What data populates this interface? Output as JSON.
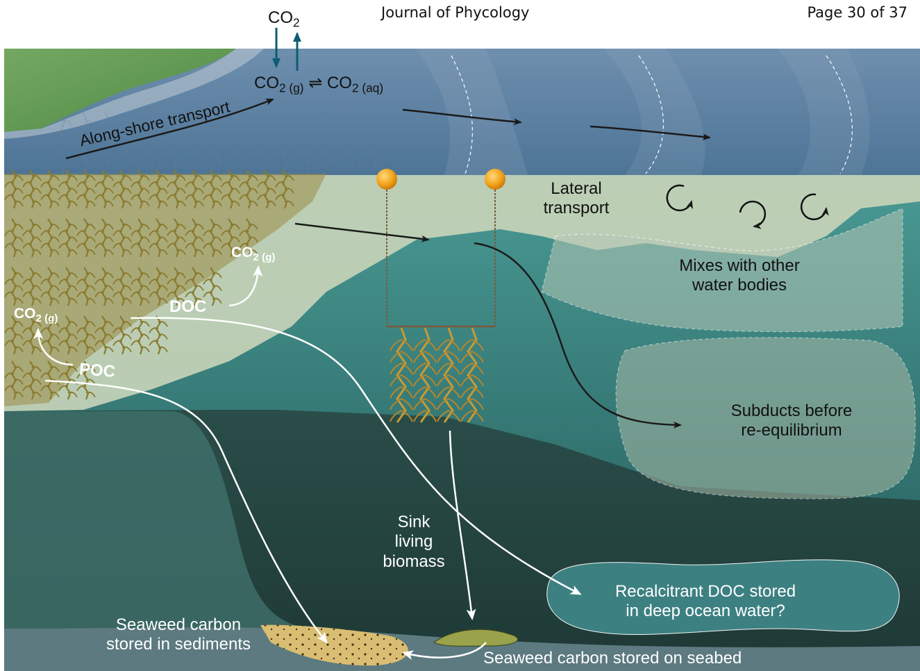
{
  "header": {
    "journal": "Journal of Phycology",
    "page": "Page 30 of 37"
  },
  "labels": {
    "co2_top": "CO",
    "co2_top_sub": "2",
    "equilibrium_left": "CO",
    "equilibrium_left_sub": "2 (g)",
    "equilibrium_symbol": "⇌",
    "equilibrium_right": "CO",
    "equilibrium_right_sub": "2 (aq)",
    "along_shore": "Along-shore transport",
    "lateral_1": "Lateral",
    "lateral_2": "transport",
    "mixes_1": "Mixes with other",
    "mixes_2": "water bodies",
    "subducts_1": "Subducts before",
    "subducts_2": "re-equilibrium",
    "co2g_upper": "CO",
    "co2g_upper_sub": "2 (g)",
    "co2g_lower": "CO",
    "co2g_lower_sub": "2 (g)",
    "doc": "DOC",
    "poc": "POC",
    "sink_1": "Sink",
    "sink_2": "living",
    "sink_3": "biomass",
    "recalcitrant_1": "Recalcitrant DOC stored",
    "recalcitrant_2": "in deep ocean water?",
    "sediments_1": "Seaweed carbon",
    "sediments_2": "stored in sediments",
    "seabed": "Seaweed carbon stored on seabed"
  },
  "colors": {
    "surface_water": "#5f87a8",
    "shelf_water": "#c9d5b9",
    "mid_water": "#3d8a88",
    "deep_water": "#284a45",
    "seabed": "#5c7a80",
    "land": "#5e9a4f",
    "kelp": "#b8922e",
    "buoy": "#f0a41c",
    "co2_arrow": "#0d5c73",
    "recalcitrant_blob": "#3f8486"
  }
}
